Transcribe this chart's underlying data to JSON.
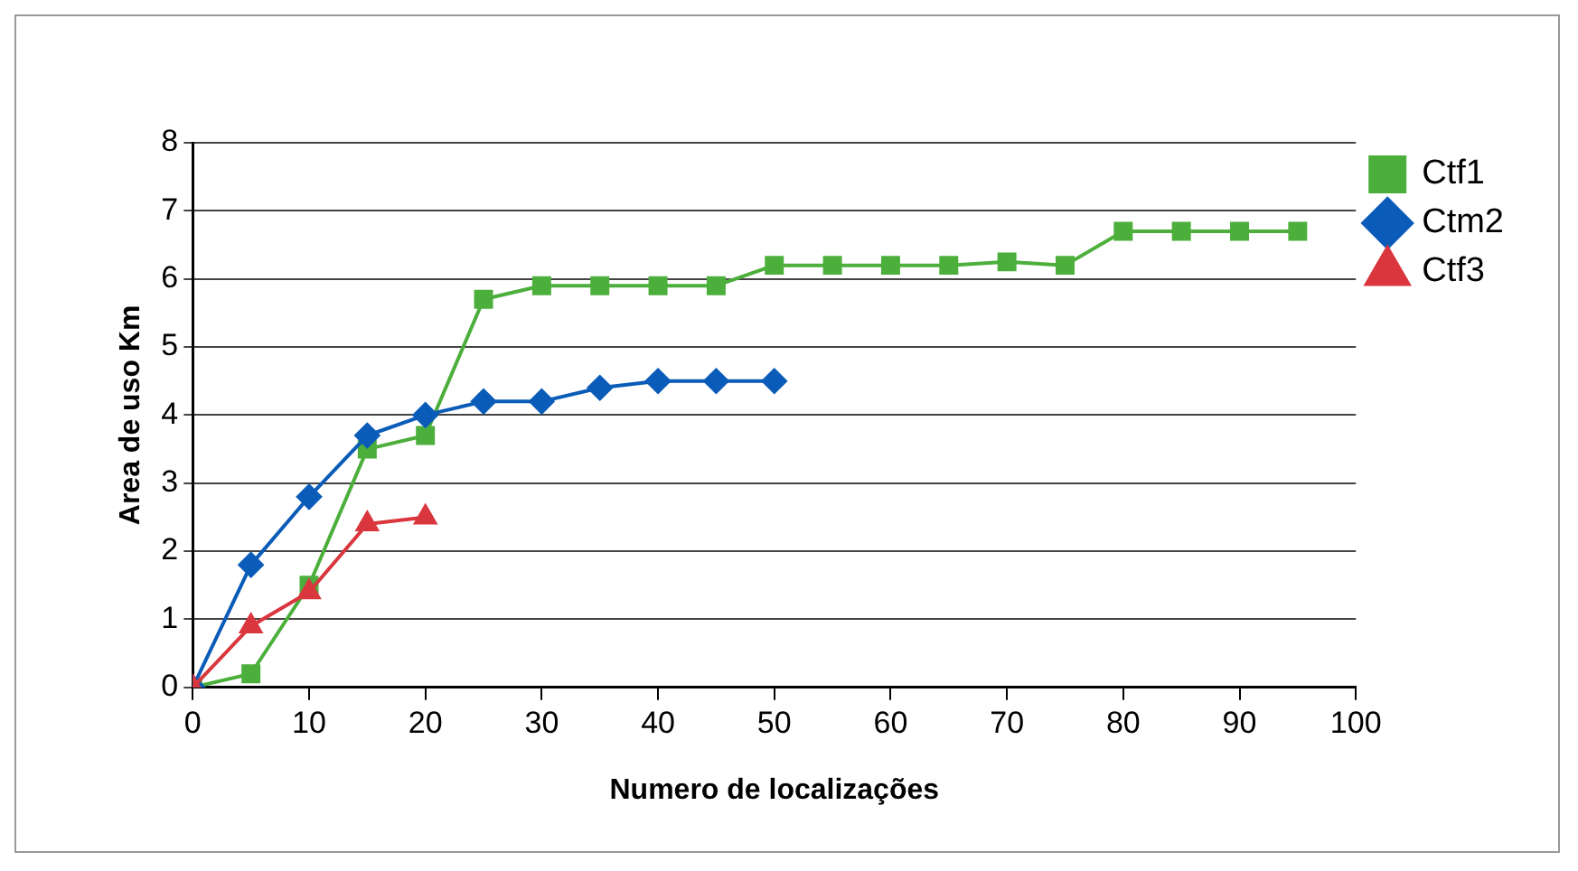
{
  "chart_data": {
    "type": "line",
    "xlabel": "Numero de localizações",
    "ylabel": "Area de uso Km",
    "xlim": [
      0,
      100
    ],
    "xticks": [
      0,
      10,
      20,
      30,
      40,
      50,
      60,
      70,
      80,
      90,
      100
    ],
    "ylim": [
      0,
      8
    ],
    "yticks": [
      0,
      1,
      2,
      3,
      4,
      5,
      6,
      7,
      8
    ],
    "grid": "y",
    "legend": "top right",
    "line_style": "solid",
    "series": [
      {
        "name": "Ctf1",
        "color": "#4caf3c",
        "marker": "square",
        "x": [
          0,
          5,
          10,
          15,
          20,
          25,
          30,
          35,
          40,
          45,
          50,
          55,
          60,
          65,
          70,
          75,
          80,
          85,
          90,
          95
        ],
        "values": [
          0,
          0.2,
          1.5,
          3.5,
          3.7,
          5.7,
          5.9,
          5.9,
          5.9,
          5.9,
          6.2,
          6.2,
          6.2,
          6.2,
          6.25,
          6.2,
          6.7,
          6.7,
          6.7,
          6.7
        ]
      },
      {
        "name": "Ctm2",
        "color": "#0a5cb8",
        "marker": "diamond",
        "x": [
          0,
          5,
          10,
          15,
          20,
          25,
          30,
          35,
          40,
          45,
          50
        ],
        "values": [
          0,
          1.8,
          2.8,
          3.7,
          4.0,
          4.2,
          4.2,
          4.4,
          4.5,
          4.5,
          4.5
        ]
      },
      {
        "name": "Ctf3",
        "color": "#d9363e",
        "marker": "triangle",
        "x": [
          0,
          5,
          10,
          15,
          20
        ],
        "values": [
          0,
          0.9,
          1.4,
          2.4,
          2.5
        ]
      }
    ]
  }
}
